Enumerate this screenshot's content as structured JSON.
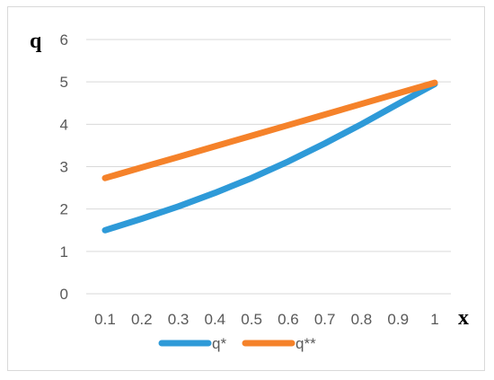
{
  "chart_data": {
    "type": "line",
    "xlabel": "x",
    "ylabel": "q",
    "ylim": [
      0,
      6
    ],
    "yticks": [
      "0",
      "1",
      "2",
      "3",
      "4",
      "5",
      "6"
    ],
    "categories": [
      "0.1",
      "0.2",
      "0.3",
      "0.4",
      "0.5",
      "0.6",
      "0.7",
      "0.8",
      "0.9",
      "1"
    ],
    "grid": true,
    "legend": "bottom",
    "series": [
      {
        "name": "q*",
        "color": "#2E9AD8",
        "values": [
          1.5,
          1.77,
          2.06,
          2.38,
          2.73,
          3.12,
          3.55,
          4.0,
          4.48,
          4.95
        ]
      },
      {
        "name": "q**",
        "color": "#F5822A",
        "values": [
          2.73,
          2.98,
          3.23,
          3.48,
          3.73,
          3.98,
          4.23,
          4.48,
          4.73,
          4.98
        ]
      }
    ]
  }
}
